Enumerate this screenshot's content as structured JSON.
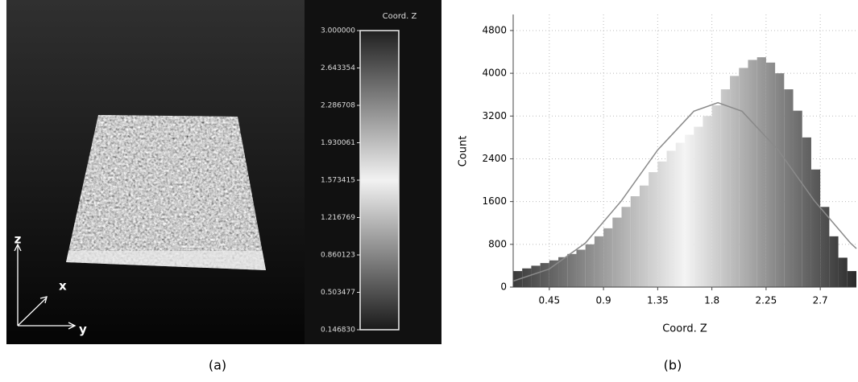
{
  "chart_data": [
    {
      "type": "colorbar",
      "title": "Coord. Z",
      "ylim": [
        0.14683,
        3.0
      ],
      "yticks": [
        {
          "value": 3.0,
          "label": "3.000000"
        },
        {
          "value": 2.643354,
          "label": "2.643354"
        },
        {
          "value": 2.286708,
          "label": "2.286708"
        },
        {
          "value": 1.930061,
          "label": "1.930061"
        },
        {
          "value": 1.573415,
          "label": "1.573415"
        },
        {
          "value": 1.216769,
          "label": "1.216769"
        },
        {
          "value": 0.860123,
          "label": "0.860123"
        },
        {
          "value": 0.503477,
          "label": "0.503477"
        },
        {
          "value": 0.14683,
          "label": "0.146830"
        }
      ],
      "colors": [
        "#1a1a1a",
        "#f2f2f2",
        "#202020"
      ],
      "annotations": [
        "z",
        "x",
        "y"
      ],
      "caption": "(a)"
    },
    {
      "type": "histogram",
      "xlabel": "Coord. Z",
      "ylabel": "Count",
      "bins": [
        0.15,
        0.225,
        0.3,
        0.375,
        0.45,
        0.525,
        0.6,
        0.675,
        0.75,
        0.825,
        0.9,
        0.975,
        1.05,
        1.125,
        1.2,
        1.275,
        1.35,
        1.425,
        1.5,
        1.575,
        1.65,
        1.725,
        1.8,
        1.875,
        1.95,
        2.025,
        2.1,
        2.175,
        2.25,
        2.325,
        2.4,
        2.475,
        2.55,
        2.625,
        2.7,
        2.775,
        2.85,
        2.925,
        3.0
      ],
      "counts": [
        300,
        350,
        400,
        450,
        500,
        560,
        620,
        700,
        800,
        950,
        1100,
        1300,
        1500,
        1700,
        1900,
        2150,
        2350,
        2550,
        2700,
        2850,
        3000,
        3200,
        3400,
        3700,
        3950,
        4100,
        4250,
        4300,
        4200,
        4000,
        3700,
        3300,
        2800,
        2200,
        1500,
        950,
        550,
        300
      ],
      "colors": [
        "#3a3a3a",
        "#f4f4f4",
        "#2a2a2a"
      ],
      "fit": {
        "color": "#8a8a8a",
        "x": [
          0.15,
          0.45,
          0.75,
          1.05,
          1.35,
          1.65,
          1.85,
          2.05,
          2.35,
          2.65,
          2.95,
          3.0
        ],
        "values": [
          113,
          340,
          825,
          1618,
          2566,
          3290,
          3450,
          3290,
          2566,
          1618,
          825,
          721
        ]
      },
      "xlim": [
        0.15,
        3.0
      ],
      "xticks": [
        0.45,
        0.9,
        1.35,
        1.8,
        2.25,
        2.7
      ],
      "ylim": [
        0,
        5100
      ],
      "yticks": [
        0,
        800,
        1600,
        2400,
        3200,
        4000,
        4800
      ],
      "grid": true,
      "caption": "(b)"
    }
  ]
}
